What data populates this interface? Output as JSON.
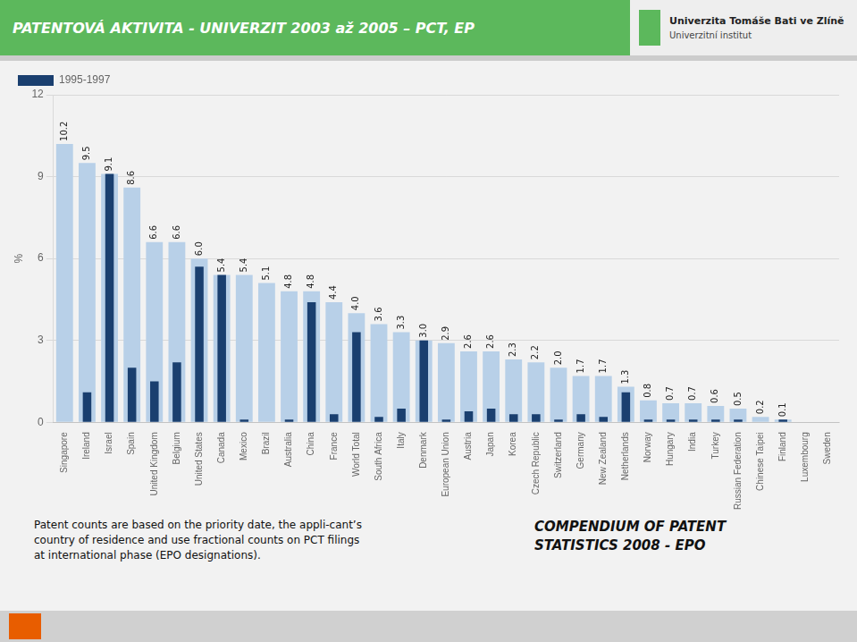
{
  "chart_data": {
    "type": "bar",
    "title": "PATENTOVÁ AKTIVITA - UNIVERZIT 2003 až 2005 – PCT, EP",
    "annotations": [
      "Univerzita Tomáše Bati ve Zlíně",
      "Univerzitní institut",
      "Patent counts are based on the priority date, the appli-cant’s",
      "country of residence and use fractional counts on PCT filings",
      "at international phase (EPO designations).",
      "COMPENDIUM OF PATENT",
      "STATISTICS 2008 - EPO"
    ],
    "categories": [
      "Singapore",
      "Ireland",
      "Israel",
      "Spain",
      "United Kingdom",
      "Belgium",
      "United States",
      "Canada",
      "Mexico",
      "Brazil",
      "Australia",
      "China",
      "France",
      "World Total",
      "South Africa",
      "Italy",
      "Denmark",
      "European Union",
      "Austria",
      "Japan",
      "Korea",
      "Czech Republic",
      "Switzerland",
      "Germany",
      "New Zealand",
      "Netherlands",
      "Norway",
      "Hungary",
      "India",
      "Turkey",
      "Russian Federation",
      "Chinese Taipei",
      "Finland",
      "Luxembourg",
      "Sweden"
    ],
    "series": [
      {
        "color": "#b8d0e8",
        "values": [
          10.2,
          9.5,
          9.1,
          8.6,
          6.6,
          6.6,
          6.0,
          5.4,
          5.4,
          5.1,
          4.8,
          4.8,
          4.4,
          4.0,
          3.6,
          3.3,
          3.0,
          2.9,
          2.6,
          2.6,
          2.3,
          2.2,
          2.0,
          1.7,
          1.7,
          1.3,
          0.8,
          0.7,
          0.7,
          0.6,
          0.5,
          0.2,
          0.1,
          0.0,
          0.0
        ],
        "value_labels": [
          "10.2",
          "9.5",
          "9.1",
          "8.6",
          "6.6",
          "6.6",
          "6.0",
          "5.4",
          "5.4",
          "5.1",
          "4.8",
          "4.8",
          "4.4",
          "4.0",
          "3.6",
          "3.3",
          "3.0",
          "2.9",
          "2.6",
          "2.6",
          "2.3",
          "2.2",
          "2.0",
          "1.7",
          "1.7",
          "1.3",
          "0.8",
          "0.7",
          "0.7",
          "0.6",
          "0.5",
          "0.2",
          "0.1",
          null,
          null
        ]
      },
      {
        "name": "1995-1997",
        "color": "#1a3f6f",
        "values": [
          0.0,
          1.1,
          9.1,
          2.0,
          1.5,
          2.2,
          5.7,
          5.4,
          0.1,
          0.0,
          0.1,
          4.4,
          0.3,
          3.3,
          0.2,
          0.5,
          3.0,
          0.1,
          0.4,
          0.5,
          0.3,
          0.3,
          0.1,
          0.3,
          0.2,
          1.1,
          0.1,
          0.1,
          0.1,
          0.1,
          0.1,
          0.0,
          0.1,
          0.0,
          0.0
        ]
      }
    ],
    "ylabel": "%",
    "ylim": [
      0,
      12
    ],
    "yticks": [
      0,
      3,
      6,
      9,
      12
    ],
    "grid": true,
    "legend": "upper left",
    "data_labels": true
  }
}
